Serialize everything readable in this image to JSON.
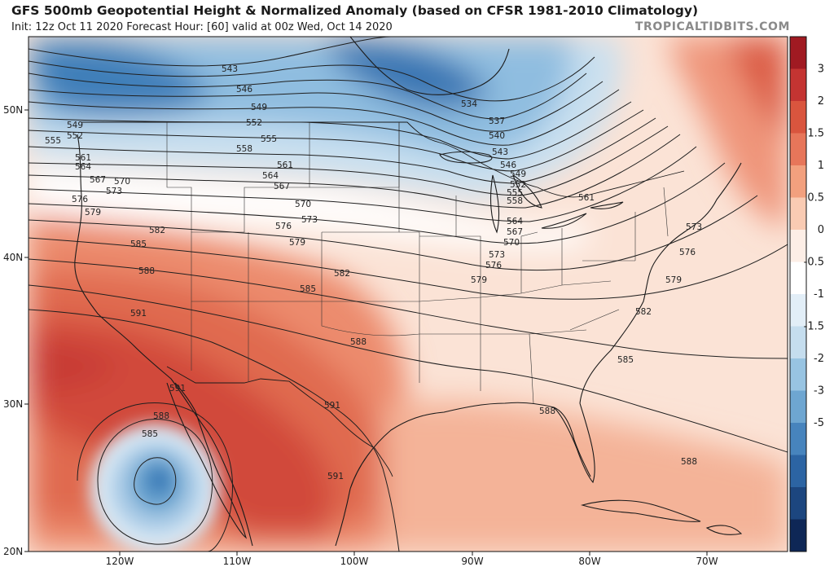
{
  "header": {
    "title": "GFS 500mb Geopotential Height & Normalized Anomaly (based on CFSR 1981-2010 Climatology)",
    "subtitle": "Init: 12z Oct 11 2020   Forecast Hour: [60]   valid at 00z Wed, Oct 14 2020",
    "brand": "TROPICALTIDBITS.COM"
  },
  "map": {
    "latitude_labels": [
      "50N",
      "40N",
      "30N",
      "20N"
    ],
    "longitude_labels": [
      "120W",
      "110W",
      "100W",
      "90W",
      "80W",
      "70W"
    ],
    "contour_labels": [
      "543",
      "546",
      "549",
      "552",
      "555",
      "558",
      "561",
      "564",
      "567",
      "570",
      "573",
      "576",
      "579",
      "582",
      "585",
      "588",
      "591",
      "534",
      "537",
      "540"
    ],
    "features": {
      "ridge": "591 dam ridge over Mexico / US Southwest",
      "trough": "534 dam trough over Hudson Bay / Ontario",
      "cutoff_low": "Cut-off low off Baja California (585 contour)"
    }
  },
  "colorbar": {
    "labels": [
      "3",
      "2",
      "1.5",
      "1",
      "0.5",
      "0",
      "-0.5",
      "-1",
      "-1.5",
      "-2",
      "-3",
      "-5"
    ],
    "colors": [
      "#a01a22",
      "#c43432",
      "#d9553e",
      "#e7765a",
      "#f2a07e",
      "#f9cbb3",
      "#fdeee6",
      "#ffffff",
      "#e2eef7",
      "#c5ddee",
      "#98c4e2",
      "#6ea6d1",
      "#4784bd",
      "#2c64a3",
      "#1c467f",
      "#0e2756"
    ]
  }
}
